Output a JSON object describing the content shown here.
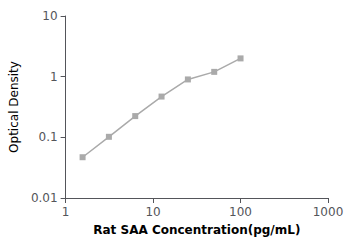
{
  "chart_data": {
    "type": "line",
    "x": [
      1.563,
      3.125,
      6.25,
      12.5,
      25,
      50,
      100
    ],
    "values": [
      0.047,
      0.102,
      0.224,
      0.47,
      0.9,
      1.2,
      2.0
    ],
    "xlabel": "Rat SAA Concentration(pg/mL)",
    "ylabel": "Optical Density",
    "xlim": [
      1,
      1000
    ],
    "ylim": [
      0.01,
      10
    ],
    "xticks": [
      1,
      10,
      100,
      1000
    ],
    "yticks": [
      0.01,
      0.1,
      1,
      10
    ],
    "log": true,
    "grid": false,
    "marker": "square",
    "color": "#aaaaaa"
  }
}
